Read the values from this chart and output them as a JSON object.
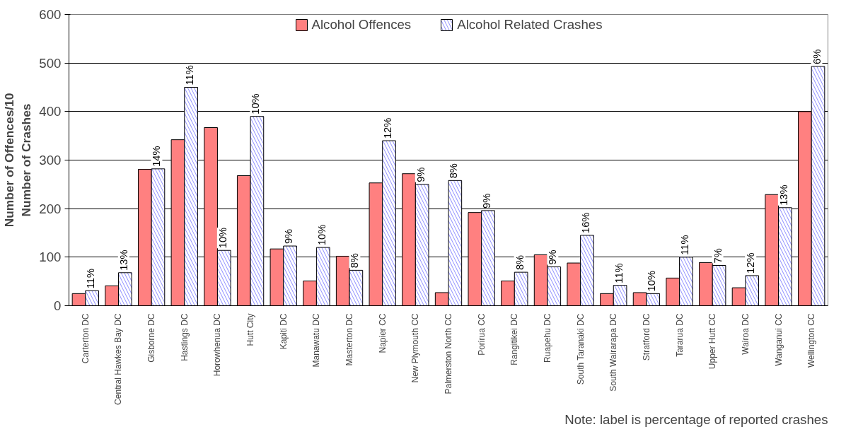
{
  "chart_data": {
    "type": "bar",
    "ylabel": "Number of Offences/10\nNumber of Crashes",
    "categories": [
      "Carterton DC",
      "Central Hawkes Bay DC",
      "Gisborne DC",
      "Hastings DC",
      "Horowhenua DC",
      "Hutt City",
      "Kapiti DC",
      "Manawatu DC",
      "Masterton DC",
      "Napier CC",
      "New Plymouth CC",
      "Palmerston North CC",
      "Porirua CC",
      "Rangitikei DC",
      "Ruapehu DC",
      "South Taranaki DC",
      "South Wairarapa DC",
      "Stratford DC",
      "Tararua DC",
      "Upper Hutt CC",
      "Wairoa DC",
      "Wanganui CC",
      "Wellington CC"
    ],
    "series": [
      {
        "name": "Alcohol Offences",
        "color": "#ff8080",
        "values": [
          25,
          41,
          281,
          342,
          367,
          268,
          117,
          51,
          102,
          253,
          272,
          27,
          192,
          51,
          105,
          88,
          25,
          27,
          57,
          89,
          37,
          229,
          400
        ]
      },
      {
        "name": "Alcohol Related Crashes",
        "color": "#9999ff",
        "values": [
          31,
          68,
          282,
          450,
          114,
          390,
          123,
          120,
          73,
          340,
          250,
          258,
          196,
          69,
          80,
          145,
          42,
          25,
          100,
          83,
          62,
          202,
          493
        ]
      }
    ],
    "ylim": [
      0,
      600
    ],
    "yticks": [
      0,
      100,
      200,
      300,
      400,
      500,
      600
    ],
    "grid": "y",
    "legend": "top",
    "annotations": [
      {
        "text": "11%",
        "x": "Carterton DC",
        "y": 31
      },
      {
        "text": "13%",
        "x": "Central Hawkes Bay DC",
        "y": 68
      },
      {
        "text": "14%",
        "x": "Gisborne DC",
        "y": 282
      },
      {
        "text": "11%",
        "x": "Hastings DC",
        "y": 450
      },
      {
        "text": "10%",
        "x": "Horowhenua DC",
        "y": 114
      },
      {
        "text": "10%",
        "x": "Hutt City",
        "y": 390
      },
      {
        "text": "9%",
        "x": "Kapiti DC",
        "y": 123
      },
      {
        "text": "10%",
        "x": "Manawatu DC",
        "y": 120
      },
      {
        "text": "8%",
        "x": "Masterton DC",
        "y": 73
      },
      {
        "text": "12%",
        "x": "Napier CC",
        "y": 340
      },
      {
        "text": "9%",
        "x": "New Plymouth CC",
        "y": 250
      },
      {
        "text": "8%",
        "x": "Palmerston North CC",
        "y": 258
      },
      {
        "text": "9%",
        "x": "Porirua CC",
        "y": 196
      },
      {
        "text": "8%",
        "x": "Rangitikei DC",
        "y": 69
      },
      {
        "text": "9%",
        "x": "Ruapehu DC",
        "y": 80
      },
      {
        "text": "16%",
        "x": "South Taranaki DC",
        "y": 145
      },
      {
        "text": "11%",
        "x": "South Wairarapa DC",
        "y": 42
      },
      {
        "text": "10%",
        "x": "Stratford DC",
        "y": 25
      },
      {
        "text": "11%",
        "x": "Tararua DC",
        "y": 100
      },
      {
        "text": "7%",
        "x": "Upper Hutt CC",
        "y": 83
      },
      {
        "text": "12%",
        "x": "Wairoa DC",
        "y": 62
      },
      {
        "text": "13%",
        "x": "Wanganui CC",
        "y": 202
      },
      {
        "text": "6%",
        "x": "Wellington CC",
        "y": 493
      },
      "Note: label is percentage of reported crashes"
    ]
  }
}
